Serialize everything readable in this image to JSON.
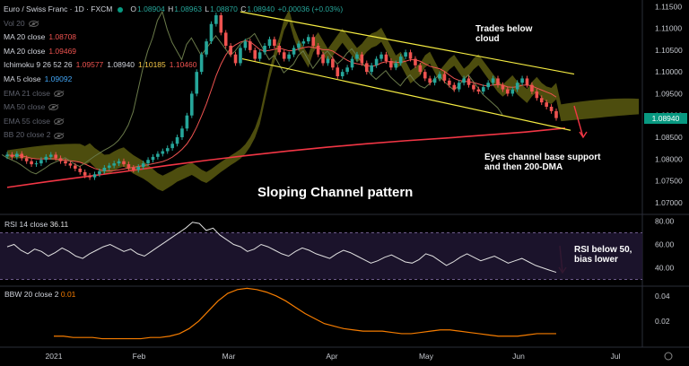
{
  "header": {
    "symbol": "Euro / Swiss Franc · 1D · FXCM",
    "open_label": "O",
    "open": "1.08904",
    "high_label": "H",
    "high": "1.08963",
    "low_label": "L",
    "low": "1.08870",
    "close_label": "C",
    "close": "1.08940",
    "change": "+0.00036 (+0.03%)"
  },
  "indicators": [
    {
      "name": "Vol 20",
      "value": "",
      "hidden": true
    },
    {
      "name": "MA 20 close",
      "value": "1.08708",
      "color": "#ef5350"
    },
    {
      "name": "MA 20 close",
      "value": "1.09469",
      "color": "#ef5350"
    },
    {
      "name": "Ichimoku 9 26 52 26",
      "values": [
        "1.09577",
        "1.08940",
        "1.10185",
        "1.10460"
      ],
      "colors": [
        "#ef5350",
        "#d1d4dc",
        "#f7c948",
        "#ef5350"
      ]
    },
    {
      "name": "MA 5 close",
      "value": "1.09092",
      "color": "#42a5f5"
    },
    {
      "name": "EMA 21 close",
      "value": "",
      "hidden": true
    },
    {
      "name": "MA 50 close",
      "value": "",
      "hidden": true
    },
    {
      "name": "EMA 55 close",
      "value": "",
      "hidden": true
    },
    {
      "name": "BB 20 close 2",
      "value": "",
      "hidden": true
    }
  ],
  "annotations": {
    "cloud": "Trades below cloud",
    "support": "Eyes channel base support and then 200-DMA",
    "pattern": "Sloping Channel pattern",
    "rsi": "RSI below 50, bias lower"
  },
  "rsi_label": {
    "name": "RSI 14 close",
    "value": "36.11"
  },
  "bbw_label": {
    "name": "BBW 20 close 2",
    "value": "0.01"
  },
  "current_price": "1.08940",
  "colors": {
    "up": "#26a69a",
    "down": "#ef5350",
    "ma200": "#f23645",
    "cloud": "#8c8c1a",
    "channel": "#f5ec42",
    "bbw": "#f57c00"
  },
  "chart_data": [
    {
      "type": "candlestick",
      "title": "Euro / Swiss Franc · 1D · FXCM",
      "x_ticks": [
        "2021",
        "Feb",
        "Mar",
        "Apr",
        "May",
        "Jun",
        "Jul"
      ],
      "y_ticks": [
        "1.11500",
        "1.11000",
        "1.10500",
        "1.10000",
        "1.09500",
        "1.09000",
        "1.08500",
        "1.08000",
        "1.07500",
        "1.07000"
      ],
      "ylim": [
        1.0675,
        1.1165
      ],
      "close": [
        1.081,
        1.0805,
        1.0812,
        1.0802,
        1.0795,
        1.0788,
        1.079,
        1.0798,
        1.0805,
        1.081,
        1.0802,
        1.0795,
        1.079,
        1.0785,
        1.0778,
        1.077,
        1.0762,
        1.0758,
        1.0765,
        1.0772,
        1.078,
        1.0785,
        1.079,
        1.0795,
        1.0788,
        1.078,
        1.0775,
        1.0782,
        1.079,
        1.0798,
        1.0805,
        1.0812,
        1.0818,
        1.0825,
        1.0835,
        1.085,
        1.087,
        1.09,
        1.095,
        1.1,
        1.104,
        1.107,
        1.111,
        1.113,
        1.109,
        1.106,
        1.104,
        1.102,
        1.1055,
        1.107,
        1.105,
        1.103,
        1.1045,
        1.106,
        1.1075,
        1.106,
        1.1045,
        1.103,
        1.104,
        1.1055,
        1.1065,
        1.107,
        1.108,
        1.106,
        1.104,
        1.102,
        1.103,
        1.101,
        1.099,
        1.1,
        1.101,
        1.103,
        1.104,
        1.102,
        1.1,
        1.1015,
        1.103,
        1.104,
        1.1025,
        1.101,
        1.102,
        1.1035,
        1.1045,
        1.103,
        1.1015,
        1.1,
        1.0985,
        1.0975,
        1.0985,
        1.0995,
        1.098,
        1.097,
        1.096,
        1.0975,
        1.0985,
        1.097,
        1.096,
        1.0955,
        1.0965,
        1.0975,
        1.0985,
        1.097,
        1.096,
        1.095,
        1.096,
        1.0975,
        1.0985,
        1.097,
        1.0955,
        1.094,
        1.093,
        1.092,
        1.091,
        1.0894
      ],
      "ma200": [
        1.0735,
        1.0748,
        1.076,
        1.0772,
        1.0785,
        1.0797,
        1.0808,
        1.0818,
        1.0827,
        1.0835,
        1.0842,
        1.0848,
        1.0855,
        1.0862,
        1.0871
      ],
      "channel_upper": [
        [
          1.1138,
          1.0995
        ]
      ],
      "channel_lower": [
        [
          1.103,
          1.0866
        ]
      ]
    },
    {
      "type": "line",
      "series": [
        {
          "name": "RSI 14 close",
          "values": [
            58,
            60,
            55,
            52,
            56,
            54,
            50,
            53,
            57,
            54,
            50,
            48,
            52,
            55,
            58,
            60,
            57,
            54,
            56,
            52,
            50,
            54,
            58,
            62,
            66,
            70,
            74,
            79,
            78,
            72,
            74,
            68,
            64,
            60,
            58,
            54,
            56,
            60,
            58,
            55,
            52,
            50,
            54,
            57,
            55,
            52,
            50,
            48,
            52,
            55,
            53,
            50,
            47,
            44,
            46,
            49,
            51,
            48,
            45,
            44,
            47,
            52,
            50,
            46,
            42,
            45,
            49,
            52,
            49,
            46,
            48,
            50,
            47,
            44,
            46,
            48,
            45,
            42,
            40,
            38,
            36.11
          ]
        }
      ],
      "y_ticks": [
        "80.00",
        "60.00",
        "40.00"
      ],
      "ylim": [
        25,
        85
      ]
    },
    {
      "type": "line",
      "series": [
        {
          "name": "BBW 20 close 2",
          "values": [
            0.008,
            0.008,
            0.007,
            0.007,
            0.007,
            0.006,
            0.006,
            0.006,
            0.006,
            0.006,
            0.007,
            0.007,
            0.008,
            0.01,
            0.014,
            0.02,
            0.028,
            0.036,
            0.042,
            0.045,
            0.046,
            0.045,
            0.043,
            0.04,
            0.036,
            0.031,
            0.026,
            0.022,
            0.018,
            0.016,
            0.014,
            0.013,
            0.012,
            0.012,
            0.012,
            0.011,
            0.01,
            0.01,
            0.011,
            0.012,
            0.013,
            0.013,
            0.012,
            0.011,
            0.01,
            0.009,
            0.008,
            0.008,
            0.008,
            0.009,
            0.01,
            0.01,
            0.01
          ]
        }
      ],
      "y_ticks": [
        "0.04",
        "0.02"
      ],
      "ylim": [
        0.0,
        0.047
      ]
    }
  ]
}
